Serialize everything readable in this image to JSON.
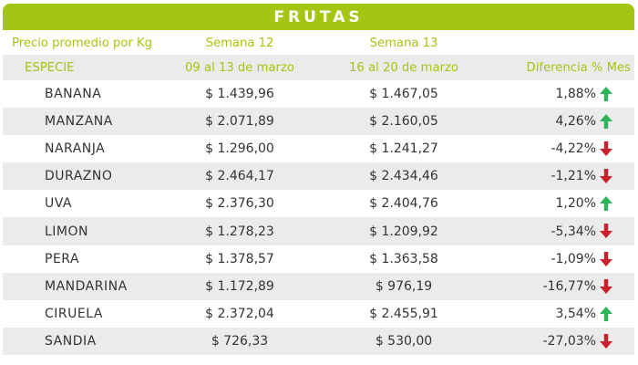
{
  "title": "FRUTAS",
  "colors": {
    "accent": "#a3c613",
    "stripe": "#ebebeb",
    "up": "#2fb35a",
    "down": "#c8202c"
  },
  "header": {
    "price_label": "Precio promedio por Kg",
    "species_label": "ESPECIE",
    "week12_label": "Semana 12",
    "week12_dates": "09 al 13 de marzo",
    "week13_label": "Semana 13",
    "week13_dates": "16 al 20 de marzo",
    "diff_label": "Diferencia % Mes"
  },
  "chart_data": {
    "type": "table",
    "title": "FRUTAS",
    "columns": [
      "ESPECIE",
      "Semana 12 (09 al 13 de marzo)",
      "Semana 13 (16 al 20 de marzo)",
      "Diferencia % Mes"
    ],
    "rows": [
      {
        "name": "BANANA",
        "w12": "$ 1.439,96",
        "w13": "$ 1.467,05",
        "diff": "1,88%",
        "trend": "up"
      },
      {
        "name": "MANZANA",
        "w12": "$ 2.071,89",
        "w13": "$ 2.160,05",
        "diff": "4,26%",
        "trend": "up"
      },
      {
        "name": "NARANJA",
        "w12": "$ 1.296,00",
        "w13": "$ 1.241,27",
        "diff": "-4,22%",
        "trend": "down"
      },
      {
        "name": "DURAZNO",
        "w12": "$ 2.464,17",
        "w13": "$ 2.434,46",
        "diff": "-1,21%",
        "trend": "down"
      },
      {
        "name": "UVA",
        "w12": "$ 2.376,30",
        "w13": "$ 2.404,76",
        "diff": "1,20%",
        "trend": "up"
      },
      {
        "name": "LIMON",
        "w12": "$ 1.278,23",
        "w13": "$ 1.209,92",
        "diff": "-5,34%",
        "trend": "down"
      },
      {
        "name": "PERA",
        "w12": "$ 1.378,57",
        "w13": "$ 1.363,58",
        "diff": "-1,09%",
        "trend": "down"
      },
      {
        "name": "MANDARINA",
        "w12": "$ 1.172,89",
        "w13": "$ 976,19",
        "diff": "-16,77%",
        "trend": "down"
      },
      {
        "name": "CIRUELA",
        "w12": "$ 2.372,04",
        "w13": "$ 2.455,91",
        "diff": "3,54%",
        "trend": "up"
      },
      {
        "name": "SANDIA",
        "w12": "$ 726,33",
        "w13": "$ 530,00",
        "diff": "-27,03%",
        "trend": "down"
      }
    ]
  }
}
